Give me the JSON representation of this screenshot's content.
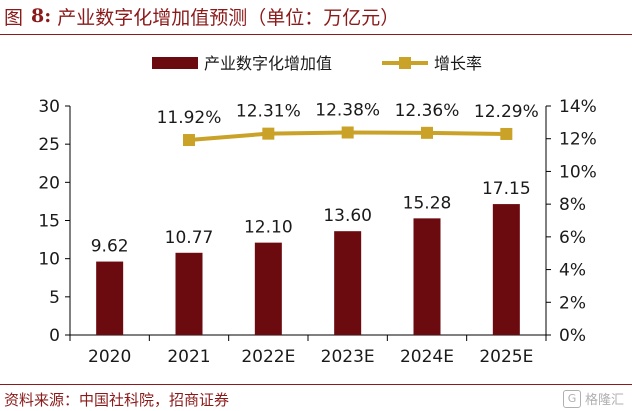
{
  "figure": {
    "label": "图",
    "number": "8:",
    "title": "产业数字化增加值预测（单位：万亿元）",
    "source": "资料来源：中国社科院，招商证券",
    "watermark_logo": "G",
    "watermark": "格隆汇"
  },
  "colors": {
    "bar": "#6B0A0F",
    "line": "#C9A227",
    "text": "#1a1a1a",
    "accent": "#8B1A1A"
  },
  "chart_data": {
    "type": "bar",
    "categories": [
      "2020",
      "2021",
      "2022E",
      "2023E",
      "2024E",
      "2025E"
    ],
    "series": [
      {
        "name": "产业数字化增加值",
        "type": "bar",
        "axis": "left",
        "values": [
          9.62,
          10.77,
          12.1,
          13.6,
          15.28,
          17.15
        ],
        "labels": [
          "9.62",
          "10.77",
          "12.10",
          "13.60",
          "15.28",
          "17.15"
        ]
      },
      {
        "name": "增长率",
        "type": "line",
        "axis": "right",
        "values": [
          null,
          11.92,
          12.31,
          12.38,
          12.36,
          12.29
        ],
        "labels": [
          "",
          "11.92%",
          "12.31%",
          "12.38%",
          "12.36%",
          "12.29%"
        ]
      }
    ],
    "y_left": {
      "min": 0,
      "max": 30,
      "ticks": [
        "0",
        "5",
        "10",
        "15",
        "20",
        "25",
        "30"
      ]
    },
    "y_right": {
      "min": 0,
      "max": 14,
      "ticks": [
        "0%",
        "2%",
        "4%",
        "6%",
        "8%",
        "10%",
        "12%",
        "14%"
      ]
    },
    "legend_position": "top-center",
    "grid": false
  }
}
